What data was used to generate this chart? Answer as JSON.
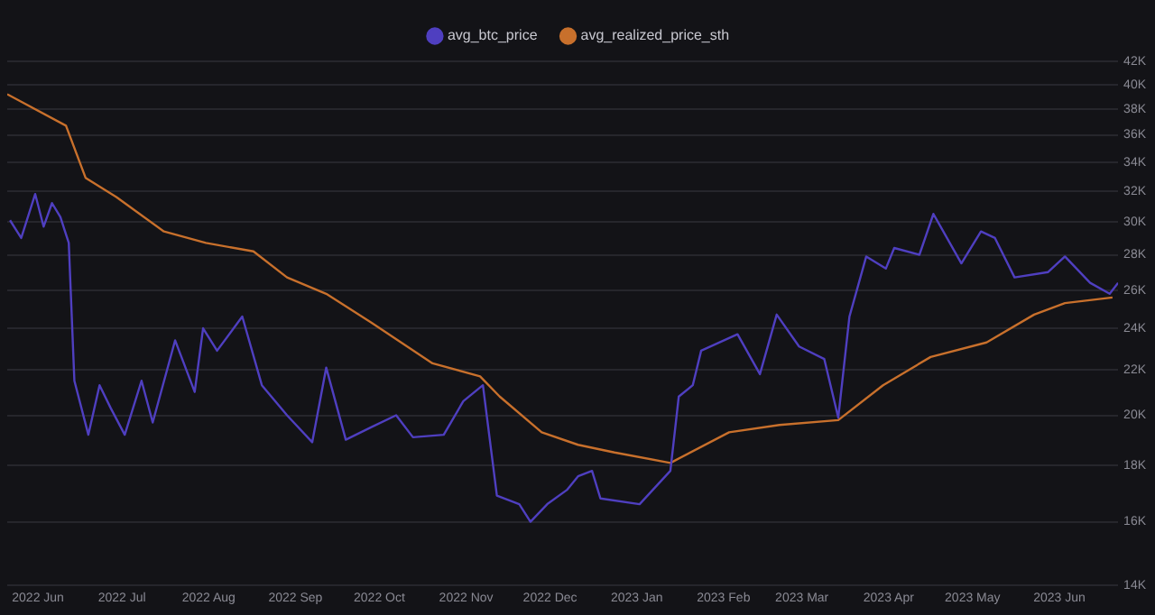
{
  "chart_data": {
    "type": "line",
    "log": "y",
    "grid": "y",
    "legend": "top",
    "marker": "none",
    "line_style": "solid",
    "xlim": [
      "2022-05-21",
      "2023-06-22"
    ],
    "xticks": [
      {
        "value": "2022-06-01",
        "label": "2022 Jun"
      },
      {
        "value": "2022-07-01",
        "label": "2022 Jul"
      },
      {
        "value": "2022-08-01",
        "label": "2022 Aug"
      },
      {
        "value": "2022-09-01",
        "label": "2022 Sep"
      },
      {
        "value": "2022-10-01",
        "label": "2022 Oct"
      },
      {
        "value": "2022-11-01",
        "label": "2022 Nov"
      },
      {
        "value": "2022-12-01",
        "label": "2022 Dec"
      },
      {
        "value": "2023-01-01",
        "label": "2023 Jan"
      },
      {
        "value": "2023-02-01",
        "label": "2023 Feb"
      },
      {
        "value": "2023-03-01",
        "label": "2023 Mar"
      },
      {
        "value": "2023-04-01",
        "label": "2023 Apr"
      },
      {
        "value": "2023-05-01",
        "label": "2023 May"
      },
      {
        "value": "2023-06-01",
        "label": "2023 Jun"
      }
    ],
    "ylim": [
      14000,
      42000
    ],
    "yticks": [
      {
        "value": 14000,
        "label": "14K"
      },
      {
        "value": 16000,
        "label": "16K"
      },
      {
        "value": 18000,
        "label": "18K"
      },
      {
        "value": 20000,
        "label": "20K"
      },
      {
        "value": 22000,
        "label": "22K"
      },
      {
        "value": 24000,
        "label": "24K"
      },
      {
        "value": 26000,
        "label": "26K"
      },
      {
        "value": 28000,
        "label": "28K"
      },
      {
        "value": 30000,
        "label": "30K"
      },
      {
        "value": 32000,
        "label": "32K"
      },
      {
        "value": 34000,
        "label": "34K"
      },
      {
        "value": 36000,
        "label": "36K"
      },
      {
        "value": 38000,
        "label": "38K"
      },
      {
        "value": 40000,
        "label": "40K"
      },
      {
        "value": 42000,
        "label": "42K"
      }
    ],
    "series": [
      {
        "name": "avg_btc_price",
        "color": "#4f3fc0",
        "x": [
          "2022-05-22",
          "2022-05-26",
          "2022-05-31",
          "2022-06-03",
          "2022-06-06",
          "2022-06-09",
          "2022-06-12",
          "2022-06-14",
          "2022-06-19",
          "2022-06-23",
          "2022-06-27",
          "2022-07-02",
          "2022-07-08",
          "2022-07-12",
          "2022-07-20",
          "2022-07-27",
          "2022-07-30",
          "2022-08-04",
          "2022-08-13",
          "2022-08-20",
          "2022-08-29",
          "2022-09-07",
          "2022-09-12",
          "2022-09-19",
          "2022-09-28",
          "2022-10-07",
          "2022-10-13",
          "2022-10-24",
          "2022-10-31",
          "2022-11-07",
          "2022-11-12",
          "2022-11-20",
          "2022-11-24",
          "2022-11-30",
          "2022-12-07",
          "2022-12-11",
          "2022-12-16",
          "2022-12-19",
          "2023-01-02",
          "2023-01-13",
          "2023-01-16",
          "2023-01-21",
          "2023-01-24",
          "2023-02-06",
          "2023-02-14",
          "2023-02-20",
          "2023-02-28",
          "2023-03-09",
          "2023-03-14",
          "2023-03-18",
          "2023-03-24",
          "2023-03-31",
          "2023-04-03",
          "2023-04-12",
          "2023-04-17",
          "2023-04-27",
          "2023-05-04",
          "2023-05-09",
          "2023-05-16",
          "2023-05-28",
          "2023-06-03",
          "2023-06-12",
          "2023-06-19",
          "2023-06-22"
        ],
        "values": [
          30100,
          29000,
          31800,
          29700,
          31200,
          30300,
          28700,
          21500,
          19200,
          21300,
          20300,
          19200,
          21500,
          19700,
          23400,
          21000,
          24000,
          22900,
          24600,
          21300,
          20000,
          18900,
          22100,
          19000,
          19500,
          20000,
          19100,
          19200,
          20600,
          21300,
          16900,
          16600,
          16000,
          16600,
          17100,
          17600,
          17800,
          16800,
          16600,
          17800,
          20800,
          21300,
          22900,
          23700,
          21800,
          24700,
          23100,
          22500,
          19900,
          24600,
          27900,
          27200,
          28400,
          28000,
          30500,
          27500,
          29400,
          29000,
          26700,
          27000,
          27900,
          26400,
          25800,
          26400
        ]
      },
      {
        "name": "avg_realized_price_sth",
        "color": "#c8702c",
        "x": [
          "2022-05-21",
          "2022-06-11",
          "2022-06-18",
          "2022-06-29",
          "2022-07-16",
          "2022-07-31",
          "2022-08-17",
          "2022-08-29",
          "2022-09-12",
          "2022-09-28",
          "2022-10-20",
          "2022-11-06",
          "2022-11-13",
          "2022-11-28",
          "2022-12-11",
          "2022-12-24",
          "2023-01-13",
          "2023-02-03",
          "2023-02-21",
          "2023-03-14",
          "2023-03-30",
          "2023-04-16",
          "2023-05-06",
          "2023-05-23",
          "2023-06-03",
          "2023-06-20"
        ],
        "values": [
          39200,
          36700,
          32900,
          31600,
          29400,
          28700,
          28200,
          26700,
          25800,
          24300,
          22300,
          21700,
          20800,
          19300,
          18800,
          18500,
          18100,
          19300,
          19600,
          19800,
          21300,
          22600,
          23300,
          24700,
          25300,
          25600
        ]
      }
    ]
  }
}
